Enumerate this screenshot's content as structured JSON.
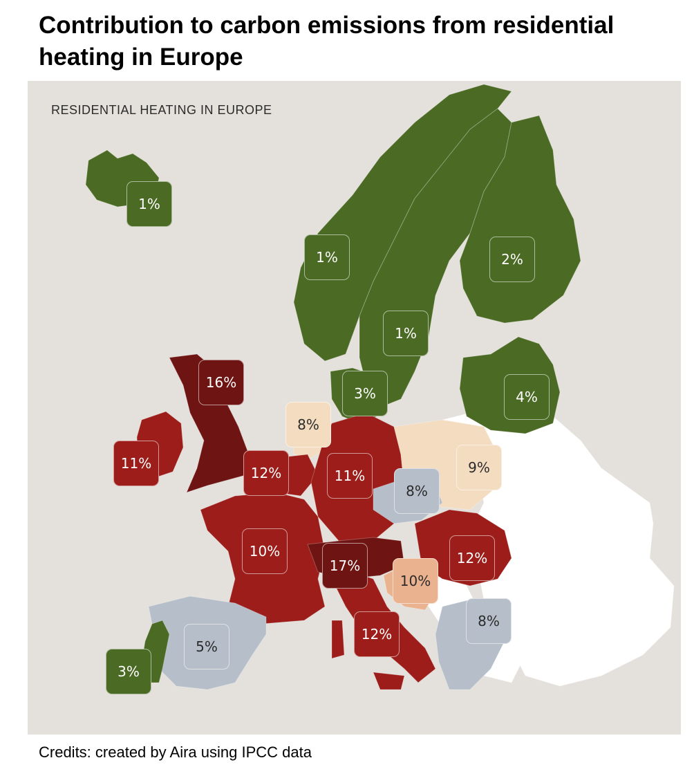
{
  "title": "Contribution to carbon emissions from residential heating in Europe",
  "map": {
    "heading": "RESIDENTIAL HEATING IN EUROPE",
    "background_color": "#e4e1dc",
    "colors": {
      "green": "#4b6a24",
      "red": "#9c1d19",
      "dark_red": "#6e1412",
      "blue_grey": "#b5bec9",
      "peach": "#f3dcbf",
      "orange": "#ebb28f",
      "white": "#ffffff"
    },
    "regions": [
      {
        "name": "iceland",
        "value": "1%",
        "category": "green"
      },
      {
        "name": "norway",
        "value": "1%",
        "category": "green"
      },
      {
        "name": "sweden",
        "value": "1%",
        "category": "green"
      },
      {
        "name": "finland",
        "value": "2%",
        "category": "green"
      },
      {
        "name": "denmark",
        "value": "3%",
        "category": "green"
      },
      {
        "name": "baltics",
        "value": "4%",
        "category": "green"
      },
      {
        "name": "united-kingdom",
        "value": "16%",
        "category": "dark_red"
      },
      {
        "name": "ireland",
        "value": "11%",
        "category": "red"
      },
      {
        "name": "netherlands",
        "value": "8%",
        "category": "peach"
      },
      {
        "name": "belgium",
        "value": "12%",
        "category": "red"
      },
      {
        "name": "germany",
        "value": "11%",
        "category": "red"
      },
      {
        "name": "poland",
        "value": "9%",
        "category": "peach"
      },
      {
        "name": "czechia",
        "value": "8%",
        "category": "blue_grey"
      },
      {
        "name": "france",
        "value": "10%",
        "category": "red"
      },
      {
        "name": "switzerland-austria",
        "value": "17%",
        "category": "dark_red"
      },
      {
        "name": "romania",
        "value": "12%",
        "category": "red"
      },
      {
        "name": "croatia",
        "value": "10%",
        "category": "orange"
      },
      {
        "name": "greece-bulgaria",
        "value": "8%",
        "category": "blue_grey"
      },
      {
        "name": "italy",
        "value": "12%",
        "category": "red"
      },
      {
        "name": "spain",
        "value": "5%",
        "category": "blue_grey"
      },
      {
        "name": "portugal",
        "value": "3%",
        "category": "green"
      }
    ]
  },
  "credits": "Credits: created by Aira using IPCC data"
}
